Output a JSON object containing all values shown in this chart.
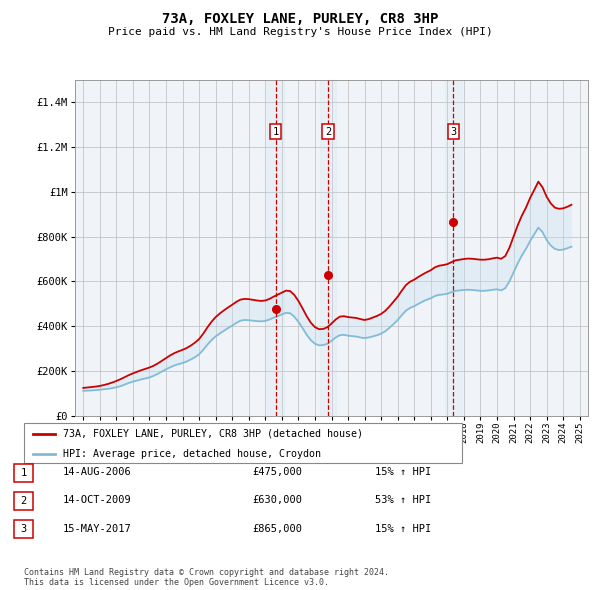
{
  "title": "73A, FOXLEY LANE, PURLEY, CR8 3HP",
  "subtitle": "Price paid vs. HM Land Registry's House Price Index (HPI)",
  "ylim": [
    0,
    1500000
  ],
  "yticks": [
    0,
    200000,
    400000,
    600000,
    800000,
    1000000,
    1200000,
    1400000
  ],
  "ytick_labels": [
    "£0",
    "£200K",
    "£400K",
    "£600K",
    "£800K",
    "£1M",
    "£1.2M",
    "£1.4M"
  ],
  "hpi_color": "#82bbd8",
  "price_color": "#cc0000",
  "vline_color": "#cc0000",
  "shade_color": "#c8dff0",
  "bg_color": "#f0f4f8",
  "transactions": [
    {
      "label": "1",
      "date_x": 2006.62,
      "price": 475000
    },
    {
      "label": "2",
      "date_x": 2009.79,
      "price": 630000
    },
    {
      "label": "3",
      "date_x": 2017.37,
      "price": 865000
    }
  ],
  "legend_entries": [
    {
      "label": "73A, FOXLEY LANE, PURLEY, CR8 3HP (detached house)",
      "color": "#cc0000"
    },
    {
      "label": "HPI: Average price, detached house, Croydon",
      "color": "#82bbd8"
    }
  ],
  "table_rows": [
    {
      "num": "1",
      "date": "14-AUG-2006",
      "price": "£475,000",
      "pct": "15% ↑ HPI"
    },
    {
      "num": "2",
      "date": "14-OCT-2009",
      "price": "£630,000",
      "pct": "53% ↑ HPI"
    },
    {
      "num": "3",
      "date": "15-MAY-2017",
      "price": "£865,000",
      "pct": "15% ↑ HPI"
    }
  ],
  "footer": "Contains HM Land Registry data © Crown copyright and database right 2024.\nThis data is licensed under the Open Government Licence v3.0.",
  "xlim": [
    1994.5,
    2025.5
  ],
  "xticks": [
    1995,
    1996,
    1997,
    1998,
    1999,
    2000,
    2001,
    2002,
    2003,
    2004,
    2005,
    2006,
    2007,
    2008,
    2009,
    2010,
    2011,
    2012,
    2013,
    2014,
    2015,
    2016,
    2017,
    2018,
    2019,
    2020,
    2021,
    2022,
    2023,
    2024,
    2025
  ],
  "hpi_data_x": [
    1995.0,
    1995.25,
    1995.5,
    1995.75,
    1996.0,
    1996.25,
    1996.5,
    1996.75,
    1997.0,
    1997.25,
    1997.5,
    1997.75,
    1998.0,
    1998.25,
    1998.5,
    1998.75,
    1999.0,
    1999.25,
    1999.5,
    1999.75,
    2000.0,
    2000.25,
    2000.5,
    2000.75,
    2001.0,
    2001.25,
    2001.5,
    2001.75,
    2002.0,
    2002.25,
    2002.5,
    2002.75,
    2003.0,
    2003.25,
    2003.5,
    2003.75,
    2004.0,
    2004.25,
    2004.5,
    2004.75,
    2005.0,
    2005.25,
    2005.5,
    2005.75,
    2006.0,
    2006.25,
    2006.5,
    2006.75,
    2007.0,
    2007.25,
    2007.5,
    2007.75,
    2008.0,
    2008.25,
    2008.5,
    2008.75,
    2009.0,
    2009.25,
    2009.5,
    2009.75,
    2010.0,
    2010.25,
    2010.5,
    2010.75,
    2011.0,
    2011.25,
    2011.5,
    2011.75,
    2012.0,
    2012.25,
    2012.5,
    2012.75,
    2013.0,
    2013.25,
    2013.5,
    2013.75,
    2014.0,
    2014.25,
    2014.5,
    2014.75,
    2015.0,
    2015.25,
    2015.5,
    2015.75,
    2016.0,
    2016.25,
    2016.5,
    2016.75,
    2017.0,
    2017.25,
    2017.5,
    2017.75,
    2018.0,
    2018.25,
    2018.5,
    2018.75,
    2019.0,
    2019.25,
    2019.5,
    2019.75,
    2020.0,
    2020.25,
    2020.5,
    2020.75,
    2021.0,
    2021.25,
    2021.5,
    2021.75,
    2022.0,
    2022.25,
    2022.5,
    2022.75,
    2023.0,
    2023.25,
    2023.5,
    2023.75,
    2024.0,
    2024.25,
    2024.5
  ],
  "hpi_data_y": [
    112000,
    113000,
    114000,
    115000,
    117000,
    119000,
    121000,
    124000,
    128000,
    133000,
    140000,
    147000,
    153000,
    158000,
    163000,
    167000,
    172000,
    179000,
    188000,
    198000,
    208000,
    217000,
    225000,
    231000,
    236000,
    243000,
    252000,
    262000,
    275000,
    295000,
    318000,
    338000,
    355000,
    368000,
    380000,
    392000,
    403000,
    415000,
    425000,
    428000,
    427000,
    425000,
    423000,
    422000,
    424000,
    430000,
    438000,
    445000,
    453000,
    460000,
    458000,
    443000,
    420000,
    392000,
    362000,
    338000,
    322000,
    315000,
    316000,
    322000,
    335000,
    350000,
    360000,
    362000,
    358000,
    356000,
    354000,
    350000,
    347000,
    350000,
    355000,
    360000,
    367000,
    378000,
    393000,
    410000,
    428000,
    450000,
    470000,
    482000,
    490000,
    500000,
    510000,
    518000,
    525000,
    535000,
    540000,
    542000,
    545000,
    552000,
    558000,
    560000,
    562000,
    563000,
    562000,
    560000,
    558000,
    558000,
    560000,
    563000,
    565000,
    560000,
    570000,
    600000,
    640000,
    680000,
    715000,
    745000,
    780000,
    810000,
    840000,
    820000,
    785000,
    760000,
    745000,
    740000,
    742000,
    748000,
    755000
  ],
  "price_data_x": [
    1995.0,
    1995.25,
    1995.5,
    1995.75,
    1996.0,
    1996.25,
    1996.5,
    1996.75,
    1997.0,
    1997.25,
    1997.5,
    1997.75,
    1998.0,
    1998.25,
    1998.5,
    1998.75,
    1999.0,
    1999.25,
    1999.5,
    1999.75,
    2000.0,
    2000.25,
    2000.5,
    2000.75,
    2001.0,
    2001.25,
    2001.5,
    2001.75,
    2002.0,
    2002.25,
    2002.5,
    2002.75,
    2003.0,
    2003.25,
    2003.5,
    2003.75,
    2004.0,
    2004.25,
    2004.5,
    2004.75,
    2005.0,
    2005.25,
    2005.5,
    2005.75,
    2006.0,
    2006.25,
    2006.5,
    2006.75,
    2007.0,
    2007.25,
    2007.5,
    2007.75,
    2008.0,
    2008.25,
    2008.5,
    2008.75,
    2009.0,
    2009.25,
    2009.5,
    2009.75,
    2010.0,
    2010.25,
    2010.5,
    2010.75,
    2011.0,
    2011.25,
    2011.5,
    2011.75,
    2012.0,
    2012.25,
    2012.5,
    2012.75,
    2013.0,
    2013.25,
    2013.5,
    2013.75,
    2014.0,
    2014.25,
    2014.5,
    2014.75,
    2015.0,
    2015.25,
    2015.5,
    2015.75,
    2016.0,
    2016.25,
    2016.5,
    2016.75,
    2017.0,
    2017.25,
    2017.5,
    2017.75,
    2018.0,
    2018.25,
    2018.5,
    2018.75,
    2019.0,
    2019.25,
    2019.5,
    2019.75,
    2020.0,
    2020.25,
    2020.5,
    2020.75,
    2021.0,
    2021.25,
    2021.5,
    2021.75,
    2022.0,
    2022.25,
    2022.5,
    2022.75,
    2023.0,
    2023.25,
    2023.5,
    2023.75,
    2024.0,
    2024.25,
    2024.5
  ],
  "price_data_y": [
    125000,
    127000,
    129000,
    131000,
    134000,
    138000,
    143000,
    149000,
    156000,
    164000,
    173000,
    182000,
    190000,
    197000,
    204000,
    210000,
    216000,
    224000,
    234000,
    246000,
    258000,
    270000,
    280000,
    288000,
    295000,
    303000,
    314000,
    327000,
    343000,
    367000,
    395000,
    420000,
    441000,
    457000,
    471000,
    484000,
    496000,
    509000,
    519000,
    522000,
    521000,
    518000,
    515000,
    513000,
    515000,
    522000,
    532000,
    541000,
    550000,
    559000,
    557000,
    540000,
    513000,
    480000,
    445000,
    416000,
    396000,
    387000,
    388000,
    396000,
    412000,
    430000,
    443000,
    445000,
    441000,
    439000,
    437000,
    432000,
    428000,
    432000,
    439000,
    446000,
    455000,
    469000,
    488000,
    510000,
    532000,
    559000,
    584000,
    599000,
    608000,
    620000,
    631000,
    641000,
    650000,
    663000,
    670000,
    673000,
    677000,
    686000,
    694000,
    697000,
    700000,
    702000,
    701000,
    699000,
    697000,
    697000,
    699000,
    703000,
    706000,
    701000,
    713000,
    750000,
    800000,
    850000,
    893000,
    929000,
    972000,
    1008000,
    1045000,
    1020000,
    978000,
    948000,
    929000,
    924000,
    926000,
    933000,
    942000
  ]
}
